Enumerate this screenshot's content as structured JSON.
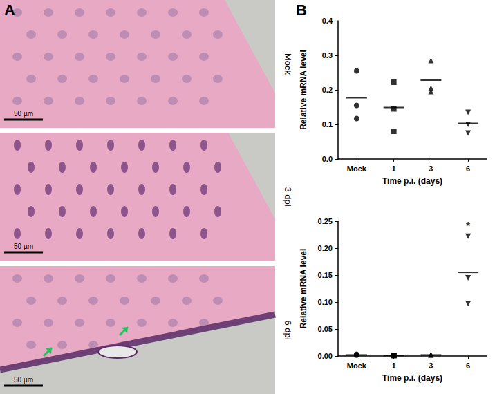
{
  "panel_labels": [
    "A",
    "B"
  ],
  "images": [
    {
      "label": "Mock",
      "scale_bar": "50 µm"
    },
    {
      "label": "3 dpi",
      "scale_bar": "50 µm"
    },
    {
      "label": "6 dpi",
      "scale_bar": "50 µm"
    }
  ],
  "chart_data": [
    {
      "type": "scatter",
      "x_label": "Time p.i. (days)",
      "y_label": "Relative mRNA level",
      "categories": [
        "Mock",
        "1",
        "3",
        "6"
      ],
      "values": [
        [
          0.255,
          0.155,
          0.117
        ],
        [
          0.222,
          0.145,
          0.08
        ],
        [
          0.285,
          0.205,
          0.195
        ],
        [
          0.135,
          0.1,
          0.075
        ]
      ],
      "means": [
        0.177,
        0.149,
        0.228,
        0.103
      ],
      "markers": [
        "circle",
        "square",
        "triangle",
        "triangle-down"
      ],
      "color": "#000000",
      "ylim": [
        0,
        0.4
      ],
      "yticks": [
        {
          "value": 0,
          "label": "0.0"
        },
        0.1,
        0.2,
        0.3,
        0.4
      ],
      "grid": false
    },
    {
      "type": "scatter",
      "x_label": "Time p.i. (days)",
      "y_label": "Relative mRNA level",
      "categories": [
        "Mock",
        "1",
        "3",
        "6"
      ],
      "values": [
        [
          0.003,
          0.002,
          0.002
        ],
        [
          0.001,
          0.001,
          0.001
        ],
        [
          0.002,
          0.003,
          0.002
        ],
        [
          0.222,
          0.145,
          0.097
        ]
      ],
      "means": [
        0.002,
        0.001,
        0.002,
        0.155
      ],
      "markers": [
        "circle",
        "square",
        "triangle",
        "triangle-down"
      ],
      "color": "#000000",
      "ylim": [
        0,
        0.25
      ],
      "yticks": [
        {
          "value": 0,
          "label": "0.00"
        },
        0.05,
        {
          "value": 0.1,
          "label": "0.10"
        },
        0.15,
        {
          "value": 0.2,
          "label": "0.20"
        },
        0.25
      ],
      "annotations": [
        {
          "category": "6",
          "text": "*"
        }
      ],
      "grid": false
    }
  ]
}
